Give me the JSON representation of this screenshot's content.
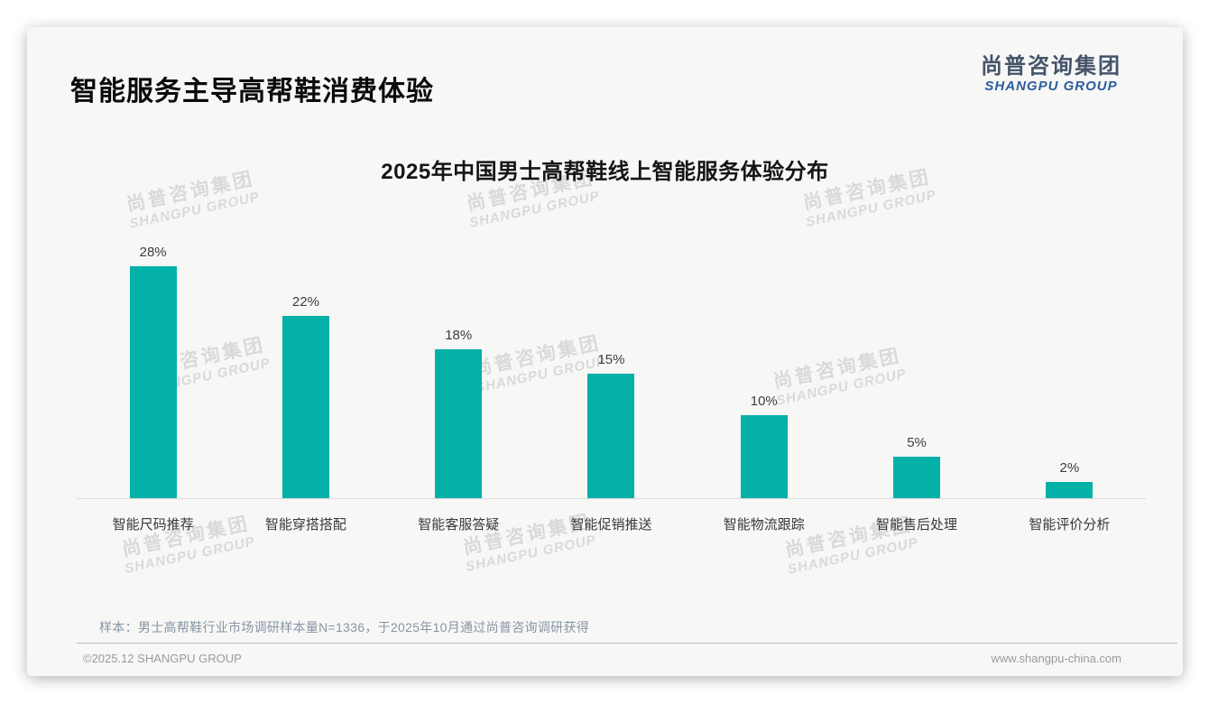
{
  "header": {
    "title": "智能服务主导高帮鞋消费体验",
    "logo_cn": "尚普咨询集团",
    "logo_en": "SHANGPU GROUP"
  },
  "watermark": {
    "cn": "尚普咨询集团",
    "en": "SHANGPU GROUP"
  },
  "note": "样本：男士高帮鞋行业市场调研样本量N=1336，于2025年10月通过尚普咨询调研获得",
  "footer": {
    "copyright": "©2025.12 SHANGPU GROUP",
    "website": "www.shangpu-china.com"
  },
  "chart_data": {
    "type": "bar",
    "title": "2025年中国男士高帮鞋线上智能服务体验分布",
    "categories": [
      "智能尺码推荐",
      "智能穿搭搭配",
      "智能客服答疑",
      "智能促销推送",
      "智能物流跟踪",
      "智能售后处理",
      "智能评价分析"
    ],
    "values": [
      28,
      22,
      18,
      15,
      10,
      5,
      2
    ],
    "unit": "%",
    "value_labels": [
      "28%",
      "22%",
      "18%",
      "15%",
      "10%",
      "5%",
      "2%"
    ],
    "bar_color": "#04b1a8",
    "xlabel": "",
    "ylabel": "",
    "ylim": [
      0,
      30
    ],
    "grid": false,
    "legend": false,
    "value_label_position": "above-bars",
    "axis_line_color": "#dcdcdc"
  }
}
